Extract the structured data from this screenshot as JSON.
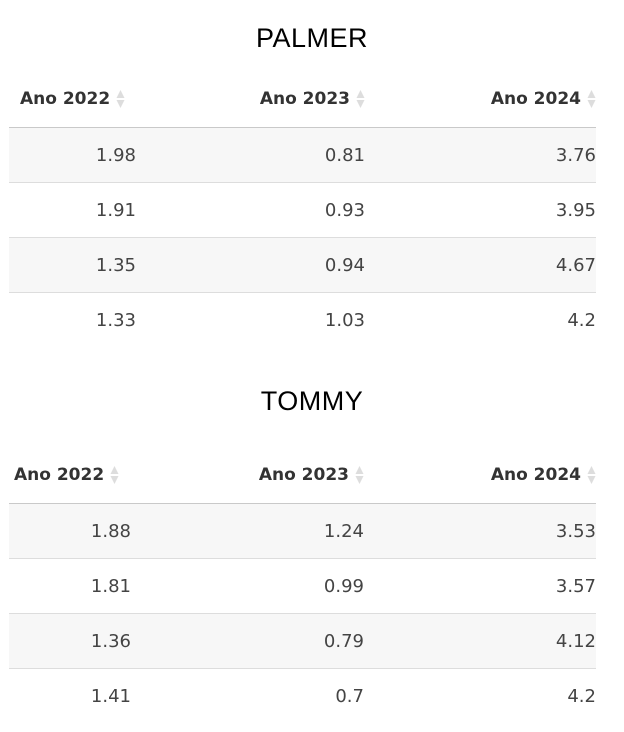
{
  "tables": [
    {
      "title": "PALMER",
      "columns": [
        "Ano 2022",
        "Ano 2023",
        "Ano 2024"
      ],
      "rows": [
        [
          "1.98",
          "0.81",
          "3.76"
        ],
        [
          "1.91",
          "0.93",
          "3.95"
        ],
        [
          "1.35",
          "0.94",
          "4.67"
        ],
        [
          "1.33",
          "1.03",
          "4.2"
        ]
      ]
    },
    {
      "title": "TOMMY",
      "columns": [
        "Ano 2022",
        "Ano 2023",
        "Ano 2024"
      ],
      "rows": [
        [
          "1.88",
          "1.24",
          "3.53"
        ],
        [
          "1.81",
          "0.99",
          "3.57"
        ],
        [
          "1.36",
          "0.79",
          "4.12"
        ],
        [
          "1.41",
          "0.7",
          "4.2"
        ]
      ]
    }
  ],
  "icons": {
    "sort": "sort-both-icon"
  },
  "colors": {
    "stripe": "#f7f7f7",
    "header_rule": "#c9c9c9",
    "row_rule": "#dddddd",
    "sort_icon": "#dddddd"
  }
}
